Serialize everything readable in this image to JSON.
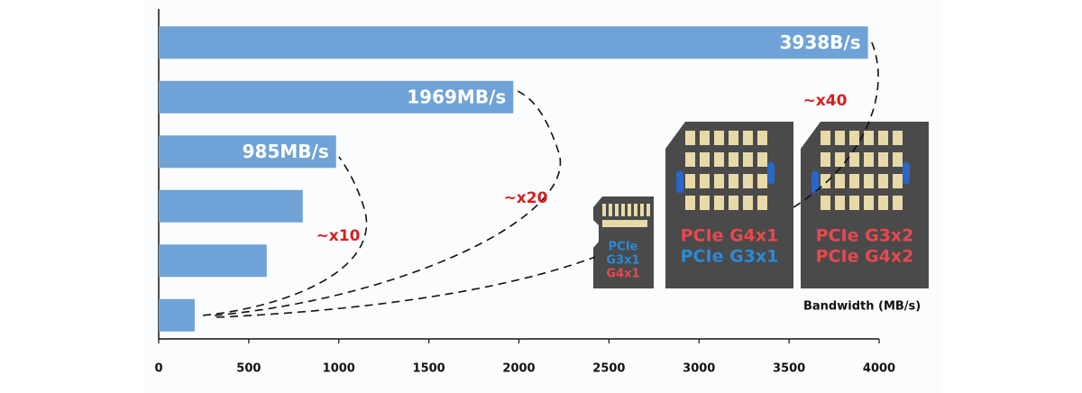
{
  "chart_data": {
    "type": "hbar",
    "categories": [
      null,
      null,
      null,
      null,
      null,
      null
    ],
    "values": [
      3938,
      1969,
      985,
      800,
      600,
      200
    ],
    "value_labels": [
      "3938B/s",
      "1969MB/s",
      "985MB/s",
      null,
      null,
      null
    ],
    "color": "#6fa3d7",
    "xlabel": "Bandwidth (MB/s)",
    "xlim": [
      0,
      4000
    ],
    "xticks": [
      0,
      500,
      1000,
      1500,
      2000,
      2500,
      3000,
      3500,
      4000
    ],
    "annotations": [
      "~x10",
      "~x20",
      "~x40"
    ],
    "cards": [
      [
        "PCIe",
        "G3x1",
        "G4x1"
      ],
      [
        "PCIe G4x1",
        "PCIe G3x1"
      ],
      [
        "PCIe G3x2",
        "PCIe G4x2"
      ]
    ]
  }
}
